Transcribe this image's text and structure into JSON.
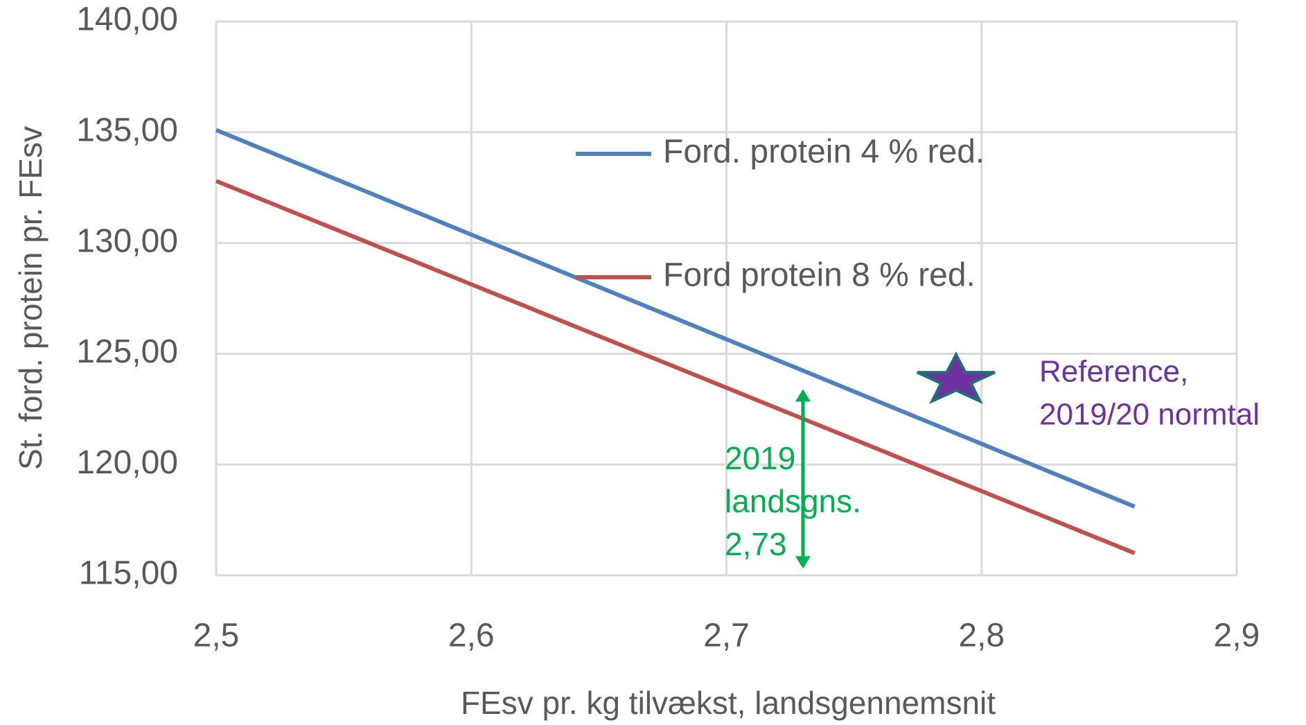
{
  "chart_data": {
    "type": "line",
    "x_label": "FEsv pr. kg tilvækst, landsgennemsnit",
    "y_label": "St. ford. protein pr. FEsv",
    "x": [
      2.5,
      2.86
    ],
    "series": [
      {
        "name": "Ford. protein 4 % red.",
        "color": "#4f81bd",
        "values": [
          135.1,
          118.1
        ]
      },
      {
        "name": "Ford protein 8 % red.",
        "color": "#c0504d",
        "values": [
          132.8,
          116.0
        ]
      }
    ],
    "xlim": [
      2.5,
      2.9
    ],
    "ylim": [
      115,
      140
    ],
    "xticks": [
      {
        "value": 2.5,
        "label": "2,5"
      },
      {
        "value": 2.6,
        "label": "2,6"
      },
      {
        "value": 2.7,
        "label": "2,7"
      },
      {
        "value": 2.8,
        "label": "2,8"
      },
      {
        "value": 2.9,
        "label": "2,9"
      }
    ],
    "yticks": [
      {
        "value": 115,
        "label": "115,00"
      },
      {
        "value": 120,
        "label": "120,00"
      },
      {
        "value": 125,
        "label": "125,00"
      },
      {
        "value": 130,
        "label": "130,00"
      },
      {
        "value": 135,
        "label": "135,00"
      },
      {
        "value": 140,
        "label": "140,00"
      }
    ],
    "grid": true,
    "reference": {
      "x": 2.79,
      "y": 123.8,
      "color": "#7030a0",
      "label": [
        "Reference,",
        "2019/20 normtal"
      ]
    },
    "arrow": {
      "x": 2.73,
      "y": [
        115.3,
        123.4
      ],
      "color": "#00b050",
      "label": [
        "2019",
        "landsgns.",
        "2,73"
      ]
    }
  }
}
